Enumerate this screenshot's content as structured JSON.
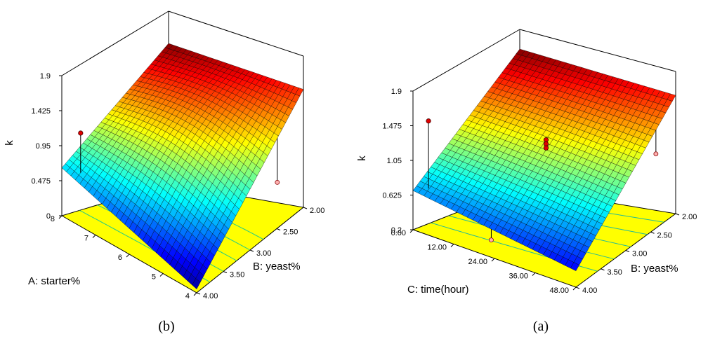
{
  "chart_data": [
    {
      "type": "surface",
      "caption": "(b)",
      "zlabel": "k",
      "xlabel": "A: starter%",
      "ylabel": "B: yeast%",
      "z_ticks": [
        "1.9",
        "1.425",
        "0.95",
        "0.475",
        "0"
      ],
      "x_ticks": [
        "8",
        "7",
        "6",
        "5",
        "4"
      ],
      "y_ticks": [
        "2.00",
        "2.50",
        "3.00",
        "3.50",
        "4.00"
      ],
      "zlim": [
        0,
        1.9
      ],
      "xlim": [
        4,
        8
      ],
      "ylim": [
        2.0,
        4.0
      ],
      "surface_corners": [
        {
          "starter": 8,
          "yeast": 4.0,
          "k": 0.65
        },
        {
          "starter": 8,
          "yeast": 2.0,
          "k": 1.9
        },
        {
          "starter": 4,
          "yeast": 2.0,
          "k": 1.6
        },
        {
          "starter": 4,
          "yeast": 4.0,
          "k": 0.05
        }
      ],
      "design_points": [
        {
          "starter": 7.6,
          "yeast": 3.9,
          "k": 1.2
        },
        {
          "starter": 6.0,
          "yeast": 3.0,
          "k": 1.05
        },
        {
          "starter": 6.0,
          "yeast": 3.0,
          "k": 1.0
        },
        {
          "starter": 6.0,
          "yeast": 3.0,
          "k": 0.95
        },
        {
          "starter": 6.0,
          "yeast": 3.0,
          "k": 0.9
        },
        {
          "starter": 4.3,
          "yeast": 2.3,
          "k": 0.48
        },
        {
          "starter": 7.0,
          "yeast": 3.6,
          "k": 0.18
        }
      ]
    },
    {
      "type": "surface",
      "caption": "(a)",
      "zlabel": "k",
      "xlabel": "C: time(hour)",
      "ylabel": "B: yeast%",
      "z_ticks": [
        "1.9",
        "1.475",
        "1.05",
        "0.625",
        "0.2"
      ],
      "x_ticks": [
        "0.00",
        "12.00",
        "24.00",
        "36.00",
        "48.00"
      ],
      "y_ticks": [
        "2.00",
        "2.50",
        "3.00",
        "3.50",
        "4.00"
      ],
      "zlim": [
        0.2,
        1.9
      ],
      "xlim": [
        0,
        48
      ],
      "ylim": [
        2.0,
        4.0
      ],
      "surface_corners": [
        {
          "time": 0,
          "yeast": 4.0,
          "k": 0.68
        },
        {
          "time": 0,
          "yeast": 2.0,
          "k": 1.9
        },
        {
          "time": 48,
          "yeast": 2.0,
          "k": 1.65
        },
        {
          "time": 48,
          "yeast": 4.0,
          "k": 0.4
        }
      ],
      "design_points": [
        {
          "time": 3,
          "yeast": 3.9,
          "k": 1.55
        },
        {
          "time": 24,
          "yeast": 3.0,
          "k": 1.3
        },
        {
          "time": 24,
          "yeast": 3.0,
          "k": 1.25
        },
        {
          "time": 24,
          "yeast": 3.0,
          "k": 1.2
        },
        {
          "time": 24,
          "yeast": 3.0,
          "k": 1.15
        },
        {
          "time": 45,
          "yeast": 2.2,
          "k": 1.0
        },
        {
          "time": 20,
          "yeast": 3.8,
          "k": 0.3
        }
      ]
    }
  ]
}
